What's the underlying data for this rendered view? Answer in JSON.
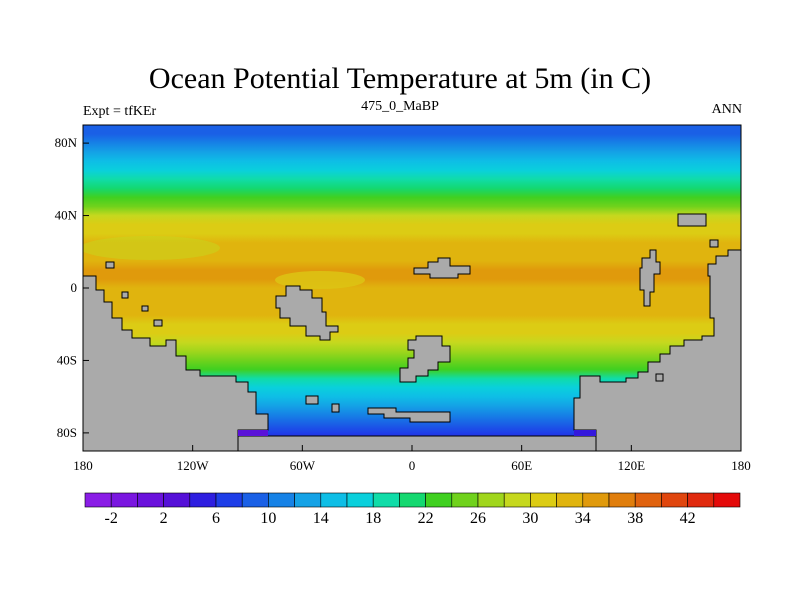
{
  "chart_data": {
    "type": "heatmap",
    "title": "Ocean Potential Temperature at 5m (in C)",
    "left_label": "Expt = tfKEr",
    "center_label": "475_0_MaBP",
    "right_label": "ANN",
    "x_ticks": [
      "180",
      "120W",
      "60W",
      "0",
      "60E",
      "120E",
      "180"
    ],
    "x_tick_values": [
      -180,
      -120,
      -60,
      0,
      60,
      120,
      180
    ],
    "y_ticks": [
      "80N",
      "40N",
      "0",
      "40S",
      "80S"
    ],
    "y_tick_values": [
      80,
      40,
      0,
      -40,
      -80
    ],
    "xlim": [
      -180,
      180
    ],
    "ylim": [
      -90,
      90
    ],
    "zonal_mean_temperature": [
      {
        "lat": 90,
        "temp": 6
      },
      {
        "lat": 85,
        "temp": 7
      },
      {
        "lat": 80,
        "temp": 8
      },
      {
        "lat": 75,
        "temp": 10
      },
      {
        "lat": 70,
        "temp": 12
      },
      {
        "lat": 65,
        "temp": 14
      },
      {
        "lat": 60,
        "temp": 16
      },
      {
        "lat": 55,
        "temp": 18
      },
      {
        "lat": 50,
        "temp": 20
      },
      {
        "lat": 45,
        "temp": 23
      },
      {
        "lat": 40,
        "temp": 26
      },
      {
        "lat": 35,
        "temp": 28
      },
      {
        "lat": 30,
        "temp": 29
      },
      {
        "lat": 25,
        "temp": 30
      },
      {
        "lat": 20,
        "temp": 31
      },
      {
        "lat": 15,
        "temp": 31
      },
      {
        "lat": 10,
        "temp": 32
      },
      {
        "lat": 5,
        "temp": 32
      },
      {
        "lat": 0,
        "temp": 31
      },
      {
        "lat": -5,
        "temp": 31
      },
      {
        "lat": -10,
        "temp": 30
      },
      {
        "lat": -15,
        "temp": 30
      },
      {
        "lat": -20,
        "temp": 29
      },
      {
        "lat": -25,
        "temp": 28
      },
      {
        "lat": -30,
        "temp": 27
      },
      {
        "lat": -35,
        "temp": 25
      },
      {
        "lat": -40,
        "temp": 23
      },
      {
        "lat": -45,
        "temp": 20
      },
      {
        "lat": -50,
        "temp": 17
      },
      {
        "lat": -55,
        "temp": 14
      },
      {
        "lat": -60,
        "temp": 12
      },
      {
        "lat": -65,
        "temp": 10
      },
      {
        "lat": -70,
        "temp": 8
      },
      {
        "lat": -75,
        "temp": 6
      },
      {
        "lat": -80,
        "temp": 4
      },
      {
        "lat": -85,
        "temp": 2
      }
    ],
    "colorbar": {
      "levels": [
        "-2",
        "2",
        "6",
        "10",
        "14",
        "18",
        "22",
        "26",
        "30",
        "34",
        "38",
        "42"
      ],
      "colors": [
        "#8a1de6",
        "#7a16e0",
        "#6a12dc",
        "#5510d8",
        "#2e1ee0",
        "#1e3ee8",
        "#1a60e6",
        "#1682e6",
        "#14a2e6",
        "#0ebee6",
        "#0ad0dc",
        "#10dca8",
        "#14d870",
        "#40d020",
        "#70d21c",
        "#a0d61c",
        "#c6d81e",
        "#dccc14",
        "#e0b40e",
        "#e09a0c",
        "#e07e0c",
        "#e0620e",
        "#e0460e",
        "#e02a0e",
        "#e40a0a"
      ]
    },
    "land_color": "#aaaaaa",
    "grid": false
  }
}
